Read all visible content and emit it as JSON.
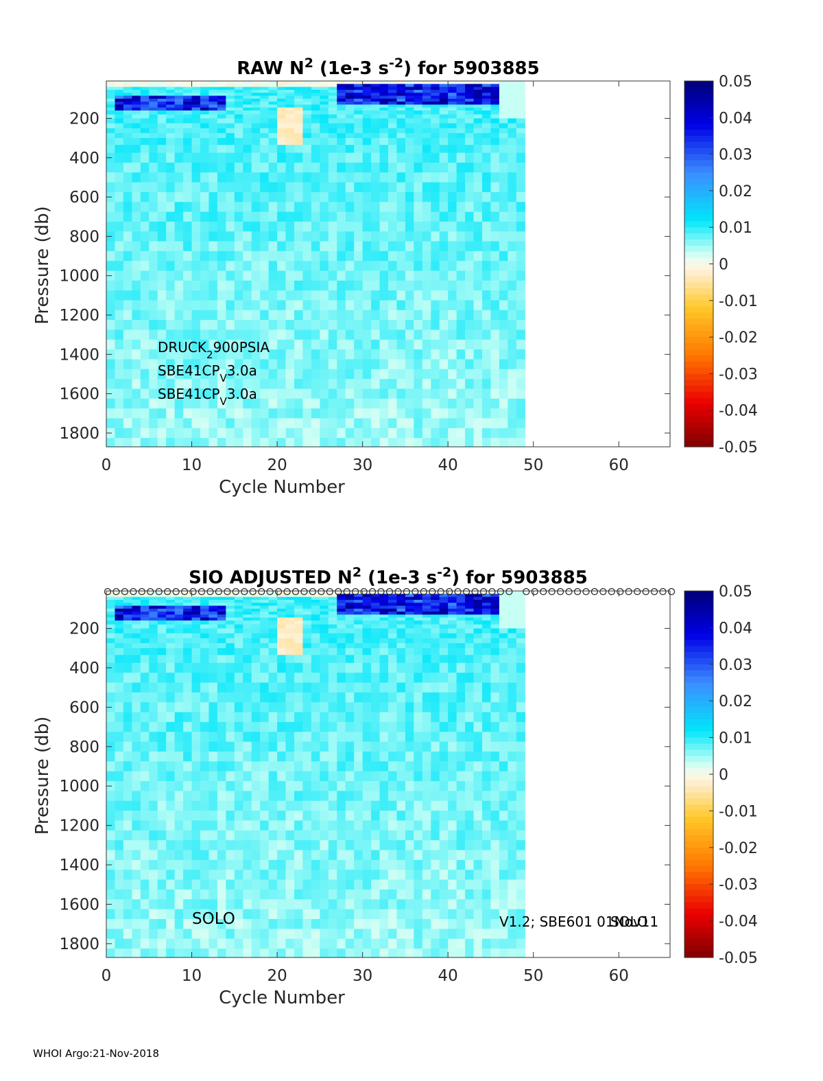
{
  "footer": "WHOI Argo:21-Nov-2018",
  "chart_data": [
    {
      "type": "heatmap",
      "title_parts": [
        "RAW N",
        "2",
        " (1e-3 s",
        "-2",
        ") for 5903885"
      ],
      "xlabel": "Cycle Number",
      "ylabel": "Pressure (db)",
      "xlim": [
        0,
        66
      ],
      "ylim": [
        1870,
        10
      ],
      "xticks": [
        "0",
        "10",
        "20",
        "30",
        "40",
        "50",
        "60"
      ],
      "yticks": [
        "200",
        "400",
        "600",
        "800",
        "1000",
        "1200",
        "1400",
        "1600",
        "1800"
      ],
      "data_cycles": [
        1,
        49
      ],
      "colorbar": {
        "min": -0.05,
        "max": 0.05,
        "ticks": [
          "0.05",
          "0.04",
          "0.03",
          "0.02",
          "0.01",
          "0",
          "-0.01",
          "-0.02",
          "-0.03",
          "-0.04",
          "-0.05"
        ]
      },
      "typical_value": 0.008,
      "features": [
        {
          "desc": "strong stratification band",
          "cycles": [
            1,
            14
          ],
          "pressure": [
            80,
            160
          ],
          "value": 0.045
        },
        {
          "desc": "strong stratification band",
          "cycles": [
            27,
            46
          ],
          "pressure": [
            30,
            130
          ],
          "value": 0.045
        },
        {
          "desc": "weak negative patch",
          "cycles": [
            20,
            23
          ],
          "pressure": [
            150,
            320
          ],
          "value": -0.004
        }
      ],
      "annotations": [
        {
          "base": "DRUCK",
          "sub": "2",
          "rest": "900PSIA"
        },
        {
          "base": "SBE41CP",
          "sub": "V",
          "rest": "3.0a"
        },
        {
          "base": "SBE41CP",
          "sub": "V",
          "rest": "3.0a"
        }
      ]
    },
    {
      "type": "heatmap",
      "title_parts": [
        "SIO  ADJUSTED N",
        "2",
        " (1e-3 s",
        "-2",
        ") for 5903885"
      ],
      "xlabel": "Cycle Number",
      "ylabel": "Pressure (db)",
      "xlim": [
        0,
        66
      ],
      "ylim": [
        1870,
        10
      ],
      "xticks": [
        "0",
        "10",
        "20",
        "30",
        "40",
        "50",
        "60"
      ],
      "yticks": [
        "200",
        "400",
        "600",
        "800",
        "1000",
        "1200",
        "1400",
        "1600",
        "1800"
      ],
      "data_cycles": [
        1,
        49
      ],
      "colorbar": {
        "min": -0.05,
        "max": 0.05,
        "ticks": [
          "0.05",
          "0.04",
          "0.03",
          "0.02",
          "0.01",
          "0",
          "-0.01",
          "-0.02",
          "-0.03",
          "-0.04",
          "-0.05"
        ]
      },
      "typical_value": 0.008,
      "qc_marker": "o",
      "qc_cycles_left": [
        0,
        47
      ],
      "qc_cycles_right": [
        49,
        66
      ],
      "annotations": [
        {
          "text": "SOLO",
          "position": "bottom-left"
        },
        {
          "text": "V1.2; SBE601 01Nov11",
          "position": "bottom-right"
        },
        {
          "text": "SOLO",
          "position": "bottom-right-overlap"
        }
      ]
    }
  ]
}
